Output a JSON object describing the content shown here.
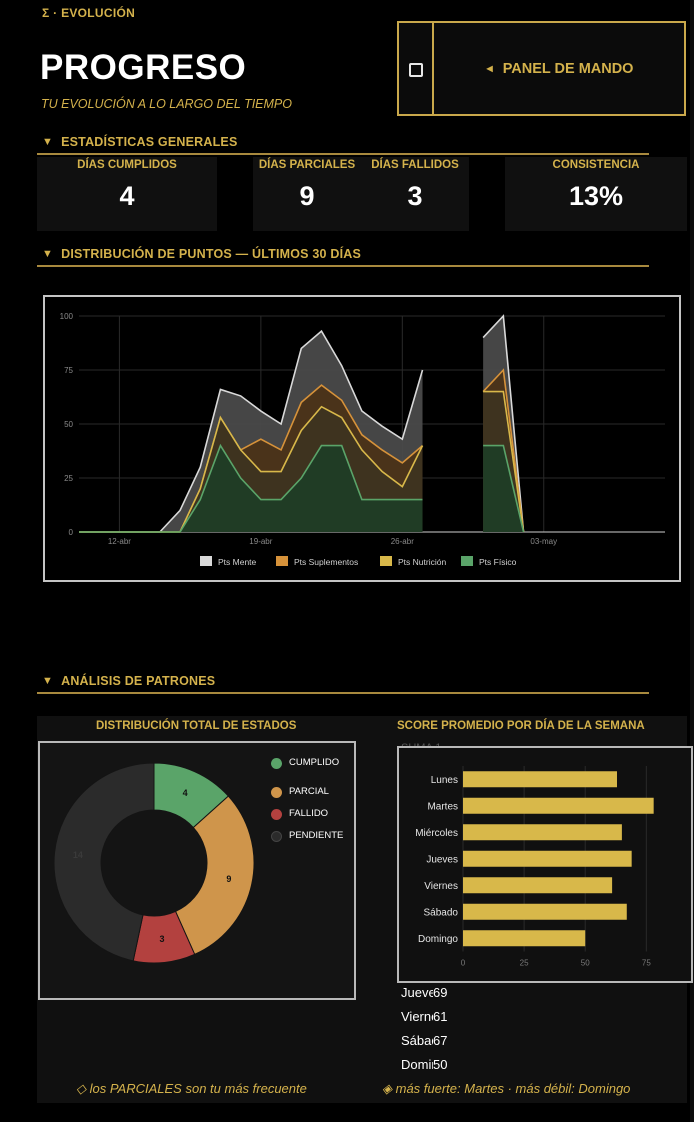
{
  "header": {
    "breadcrumb": "Σ · EVOLUCIÓN",
    "title": "PROGRESO",
    "subtitle": "TU EVOLUCIÓN A LO LARGO DEL TIEMPO",
    "panel_button_icon": "triangle-left-icon",
    "panel_button_label": "PANEL DE MANDO"
  },
  "stats_section": {
    "title": "ESTADÍSTICAS GENERALES",
    "items": [
      {
        "label": "DÍAS CUMPLIDOS",
        "value": "4"
      },
      {
        "label": "DÍAS PARCIALES",
        "value": "9"
      },
      {
        "label": "DÍAS FALLIDOS",
        "value": "3"
      },
      {
        "label": "CONSISTENCIA",
        "value": "13%"
      }
    ]
  },
  "points_section": {
    "title": "DISTRIBUCIÓN DE PUNTOS — ÚLTIMOS 30 DÍAS"
  },
  "patterns_section": {
    "title": "ANÁLISIS DE PATRONES",
    "donut_title": "DISTRIBUCIÓN TOTAL DE ESTADOS",
    "bar_title": "SCORE PROMEDIO POR DÍA DE LA SEMANA",
    "behind_text": "SUMA 1",
    "score_list": [
      {
        "day": "Jueves",
        "value": "69"
      },
      {
        "day": "Viernes",
        "value": "61"
      },
      {
        "day": "Sábado",
        "value": "67"
      },
      {
        "day": "Domingo",
        "value": "50"
      }
    ],
    "note_left": "◇ los PARCIALES son tu más frecuente",
    "note_right": "◈ más fuerte: Martes  ·  más débil: Domingo"
  },
  "colors": {
    "accent": "#d4b24c",
    "mente": "#d9d9d9",
    "suplementos": "#d6923a",
    "nutricion": "#d8b84a",
    "fisico": "#5aa469",
    "cumplido": "#5aa469",
    "parcial": "#cf954b",
    "fallido": "#b3413f",
    "pendiente": "#2b2b2b"
  },
  "chart_data": [
    {
      "type": "area",
      "x_ticks": [
        "12-abr",
        "19-abr",
        "26-abr",
        "03-may"
      ],
      "ylim": [
        0,
        100
      ],
      "y_ticks": [
        0,
        25,
        50,
        75,
        100
      ],
      "x": [
        "10-abr",
        "11-abr",
        "12-abr",
        "13-abr",
        "14-abr",
        "15-abr",
        "16-abr",
        "17-abr",
        "18-abr",
        "19-abr",
        "20-abr",
        "21-abr",
        "22-abr",
        "23-abr",
        "24-abr",
        "25-abr",
        "26-abr",
        "27-abr",
        "28-abr",
        "29-abr",
        "30-abr",
        "01-may",
        "02-may",
        "03-may",
        "04-may",
        "05-may",
        "06-may",
        "07-may",
        "08-may",
        "09-may"
      ],
      "series": [
        {
          "name": "Pts Físico",
          "values": [
            0,
            0,
            0,
            0,
            0,
            0,
            15,
            40,
            25,
            15,
            15,
            25,
            40,
            40,
            15,
            15,
            15,
            15,
            null,
            null,
            40,
            40,
            0,
            null,
            null,
            null,
            null,
            null,
            null,
            null
          ]
        },
        {
          "name": "Pts Nutrición",
          "values": [
            0,
            0,
            0,
            0,
            0,
            0,
            20,
            53,
            38,
            28,
            28,
            47,
            58,
            53,
            38,
            28,
            21,
            40,
            null,
            null,
            65,
            65,
            0,
            null,
            null,
            null,
            null,
            null,
            null,
            null
          ]
        },
        {
          "name": "Pts Suplementos",
          "values": [
            0,
            0,
            0,
            0,
            0,
            0,
            20,
            53,
            38,
            43,
            38,
            60,
            68,
            61,
            45,
            38,
            32,
            40,
            null,
            null,
            65,
            75,
            0,
            null,
            null,
            null,
            null,
            null,
            null,
            null
          ]
        },
        {
          "name": "Pts Mente",
          "values": [
            0,
            0,
            0,
            0,
            0,
            10,
            30,
            66,
            63,
            56,
            50,
            85,
            93,
            77,
            56,
            49,
            43,
            75,
            null,
            null,
            90,
            100,
            0,
            null,
            null,
            null,
            null,
            null,
            null,
            null
          ]
        }
      ]
    },
    {
      "type": "pie",
      "categories": [
        "CUMPLIDO",
        "PARCIAL",
        "FALLIDO",
        "PENDIENTE"
      ],
      "values": [
        4,
        9,
        3,
        14
      ]
    },
    {
      "type": "bar",
      "orientation": "horizontal",
      "categories": [
        "Lunes",
        "Martes",
        "Miércoles",
        "Jueves",
        "Viernes",
        "Sábado",
        "Domingo"
      ],
      "values": [
        63,
        78,
        65,
        69,
        61,
        67,
        50
      ],
      "x_ticks": [
        0,
        25,
        50,
        75
      ],
      "xlim": [
        0,
        90
      ]
    }
  ]
}
